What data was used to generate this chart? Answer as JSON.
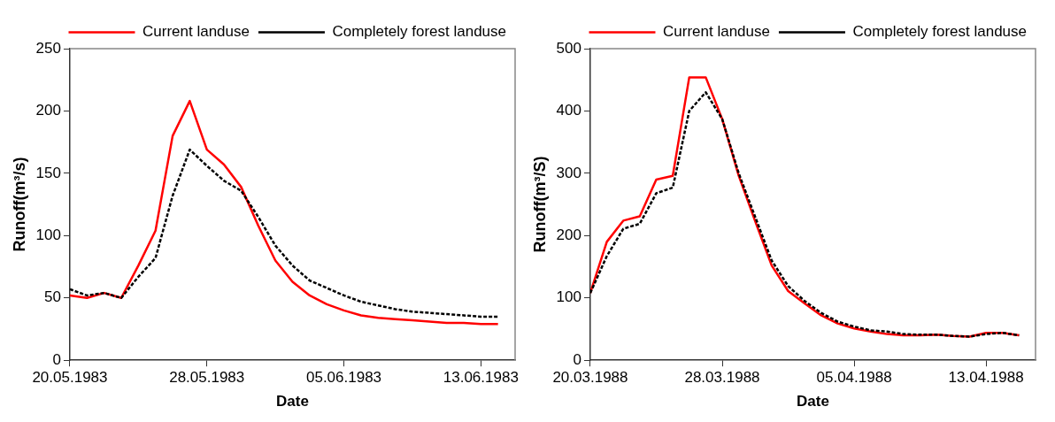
{
  "chart_data": [
    {
      "type": "line",
      "xlabel": "Date",
      "ylabel": "Runoff(m³/s)",
      "x": [
        "1983-05-20",
        "1983-05-21",
        "1983-05-22",
        "1983-05-23",
        "1983-05-24",
        "1983-05-25",
        "1983-05-26",
        "1983-05-27",
        "1983-05-28",
        "1983-05-29",
        "1983-05-30",
        "1983-05-31",
        "1983-06-01",
        "1983-06-02",
        "1983-06-03",
        "1983-06-04",
        "1983-06-05",
        "1983-06-06",
        "1983-06-07",
        "1983-06-08",
        "1983-06-09",
        "1983-06-10",
        "1983-06-11",
        "1983-06-12",
        "1983-06-13",
        "1983-06-14"
      ],
      "series": [
        {
          "name": "Current landuse",
          "color": "#ff0000",
          "line_style": "solid",
          "values": [
            52,
            50,
            54,
            50,
            76,
            104,
            180,
            208,
            169,
            157,
            139,
            108,
            80,
            63,
            52,
            45,
            40,
            36,
            34,
            33,
            32,
            31,
            30,
            30,
            29,
            29
          ]
        },
        {
          "name": "Completely forest landuse",
          "color": "#000000",
          "line_style": "dashed",
          "values": [
            57,
            52,
            54,
            50,
            67,
            82,
            132,
            169,
            156,
            144,
            136,
            115,
            92,
            76,
            64,
            58,
            52,
            47,
            44,
            41,
            39,
            38,
            37,
            36,
            35,
            35
          ]
        }
      ],
      "xlim": [
        "1983-05-20",
        "1983-06-15"
      ],
      "xticks": [
        {
          "value": "1983-05-20",
          "label": "20.05.1983"
        },
        {
          "value": "1983-05-28",
          "label": "28.05.1983"
        },
        {
          "value": "1983-06-05",
          "label": "05.06.1983"
        },
        {
          "value": "1983-06-13",
          "label": "13.06.1983"
        }
      ],
      "ylim": [
        0,
        250
      ],
      "yticks": [
        0,
        50,
        100,
        150,
        200,
        250
      ],
      "grid": false,
      "legend": "top right",
      "marker": "none"
    },
    {
      "type": "line",
      "xlabel": "Date",
      "ylabel": "Runoff(m³/S)",
      "x": [
        "1988-03-20",
        "1988-03-21",
        "1988-03-22",
        "1988-03-23",
        "1988-03-24",
        "1988-03-25",
        "1988-03-26",
        "1988-03-27",
        "1988-03-28",
        "1988-03-29",
        "1988-03-30",
        "1988-03-31",
        "1988-04-01",
        "1988-04-02",
        "1988-04-03",
        "1988-04-04",
        "1988-04-05",
        "1988-04-06",
        "1988-04-07",
        "1988-04-08",
        "1988-04-09",
        "1988-04-10",
        "1988-04-11",
        "1988-04-12",
        "1988-04-13",
        "1988-04-14",
        "1988-04-15"
      ],
      "series": [
        {
          "name": "Current landuse",
          "color": "#ff0000",
          "line_style": "solid",
          "values": [
            108,
            190,
            224,
            231,
            290,
            296,
            454,
            454,
            387,
            296,
            223,
            152,
            111,
            91,
            72,
            59,
            51,
            46,
            42,
            40,
            40,
            41,
            39,
            38,
            44,
            44,
            40
          ]
        },
        {
          "name": "Completely forest landuse",
          "color": "#000000",
          "line_style": "dashed",
          "values": [
            108,
            167,
            211,
            219,
            268,
            277,
            400,
            430,
            387,
            300,
            230,
            160,
            119,
            95,
            76,
            62,
            54,
            48,
            46,
            42,
            41,
            41,
            39,
            38,
            42,
            44,
            40
          ]
        }
      ],
      "xlim": [
        "1988-03-20",
        "1988-04-16"
      ],
      "xticks": [
        {
          "value": "1988-03-20",
          "label": "20.03.1988"
        },
        {
          "value": "1988-03-28",
          "label": "28.03.1988"
        },
        {
          "value": "1988-04-05",
          "label": "05.04.1988"
        },
        {
          "value": "1988-04-13",
          "label": "13.04.1988"
        }
      ],
      "ylim": [
        0,
        500
      ],
      "yticks": [
        0,
        100,
        200,
        300,
        400,
        500
      ],
      "grid": false,
      "legend": "top right",
      "marker": "none"
    }
  ]
}
